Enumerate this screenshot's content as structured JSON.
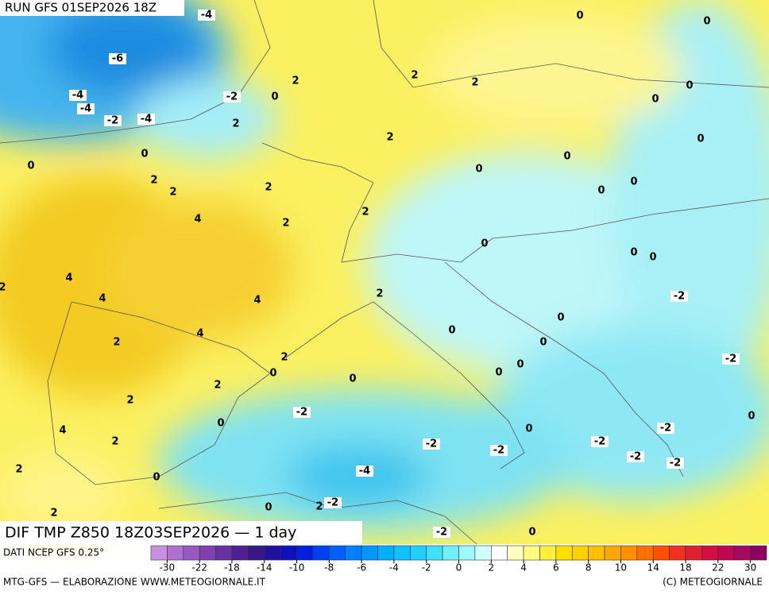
{
  "header": {
    "title": "RUN GFS 01SEP2026 18Z"
  },
  "map": {
    "title": "DIF TMP Z850 18Z03SEP2026 — 1 day",
    "contour_labels": [
      -4,
      0,
      0,
      -6,
      2,
      2,
      2,
      0,
      -4,
      -4,
      -2,
      0,
      0,
      -2,
      -4,
      2,
      2,
      0,
      0,
      0,
      0,
      2,
      0,
      2,
      2,
      0,
      0,
      2,
      4,
      2,
      0,
      0,
      0,
      4,
      -2,
      2,
      4,
      4,
      2,
      0,
      4,
      2,
      0,
      0,
      2,
      -2,
      0,
      0,
      0,
      0,
      2,
      2,
      0,
      -2,
      0,
      4,
      0,
      -2,
      2,
      -2,
      -2,
      -2,
      -2,
      -2,
      2,
      0,
      -4,
      0,
      2,
      -2,
      2,
      -2,
      0
    ]
  },
  "footer": {
    "source": "DATI NCEP GFS 0.25°",
    "credit_left": "MTG-GFS — ELABORAZIONE WWW.METEOGIORNALE.IT",
    "credit_right": "(C) METEOGIORNALE"
  },
  "colorbar": {
    "colors": [
      "#c890e0",
      "#b070d0",
      "#9858c0",
      "#8040b0",
      "#6830a0",
      "#502090",
      "#381888",
      "#2010a0",
      "#1010c0",
      "#0020e0",
      "#0040f0",
      "#0060f8",
      "#0080ff",
      "#0098ff",
      "#00b0ff",
      "#10c0ff",
      "#20d0ff",
      "#40e0ff",
      "#70f0ff",
      "#a0f8ff",
      "#d0ffff",
      "#ffffff",
      "#ffffc0",
      "#ffff80",
      "#fff040",
      "#ffe000",
      "#ffd000",
      "#ffc000",
      "#ffa800",
      "#ff9000",
      "#ff7000",
      "#ff5000",
      "#f03020",
      "#e02030",
      "#d01040",
      "#c00850",
      "#a80860",
      "#900060"
    ],
    "ticks": [
      -30,
      -22,
      -18,
      -14,
      -10,
      -8,
      -6,
      -4,
      -2,
      0,
      2,
      4,
      6,
      8,
      10,
      14,
      18,
      22,
      30
    ]
  }
}
